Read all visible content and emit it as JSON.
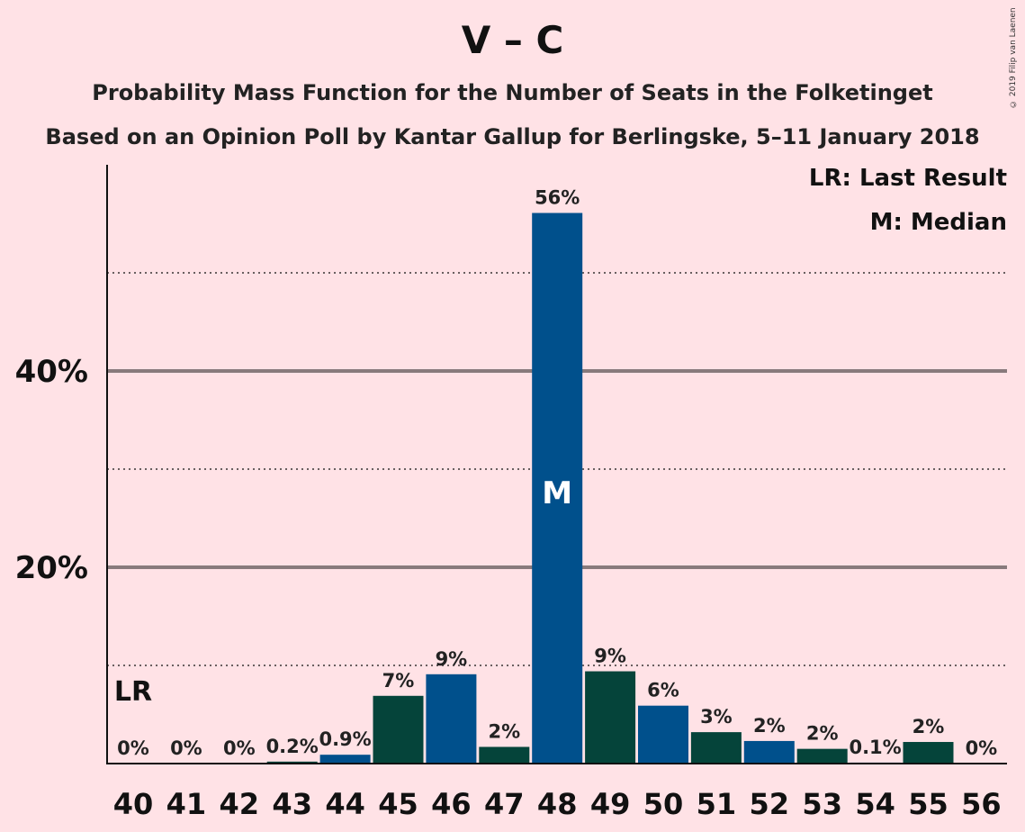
{
  "title": "V – C",
  "subtitle1": "Probability Mass Function for the Number of Seats in the Folketinget",
  "subtitle2": "Based on an Opinion Poll by Kantar Gallup for Berlingske, 5–11 January 2018",
  "copyright": "© 2019 Filip van Laenen",
  "legend": {
    "lr": "LR: Last Result",
    "m": "M: Median"
  },
  "colors": {
    "background": "#FFE2E6",
    "blue": "#00508C",
    "green": "#05443A"
  },
  "chart_data": {
    "type": "bar",
    "categories": [
      "40",
      "41",
      "42",
      "43",
      "44",
      "45",
      "46",
      "47",
      "48",
      "49",
      "50",
      "51",
      "52",
      "53",
      "54",
      "55",
      "56"
    ],
    "values": [
      0,
      0,
      0,
      0.2,
      0.9,
      7,
      9,
      2,
      56,
      9,
      6,
      3,
      2,
      2,
      0.1,
      2,
      0
    ],
    "plot_values": [
      0,
      0,
      0,
      0.2,
      0.9,
      6.9,
      9.1,
      1.7,
      56.1,
      9.4,
      5.9,
      3.2,
      2.3,
      1.5,
      0.1,
      2.2,
      0
    ],
    "labels": [
      "0%",
      "0%",
      "0%",
      "0.2%",
      "0.9%",
      "7%",
      "9%",
      "2%",
      "56%",
      "9%",
      "6%",
      "3%",
      "2%",
      "2%",
      "0.1%",
      "2%",
      "0%"
    ],
    "bar_colors": [
      "blue",
      "green",
      "blue",
      "green",
      "blue",
      "green",
      "blue",
      "green",
      "blue",
      "green",
      "blue",
      "green",
      "blue",
      "green",
      "blue",
      "green",
      "blue"
    ],
    "yticks": [
      {
        "value": 20,
        "label": "20%"
      },
      {
        "value": 40,
        "label": "40%"
      }
    ],
    "dotted_gridlines": [
      10,
      30,
      50
    ],
    "ylim": [
      0,
      60
    ],
    "last_result": {
      "category": "40",
      "label": "LR"
    },
    "median": {
      "category": "48",
      "label": "M"
    },
    "grid": true
  }
}
